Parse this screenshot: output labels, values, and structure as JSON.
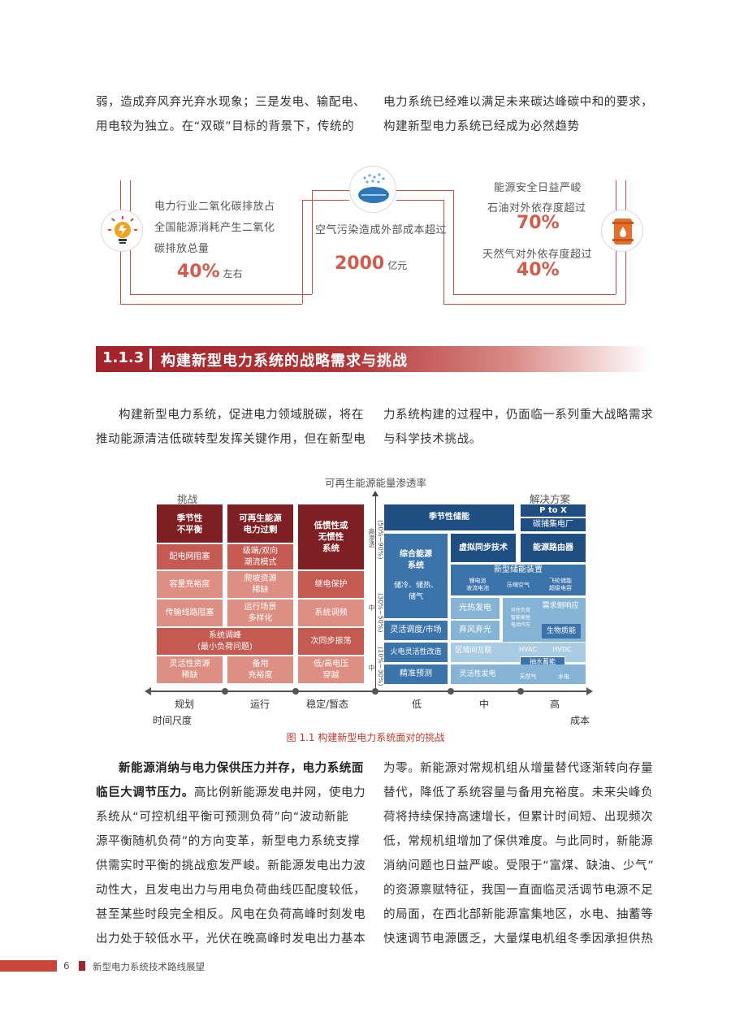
{
  "top_text": {
    "left": [
      "弱，造成弃风弃光弃水现象；三是发电、输配电、",
      "用电较为独立。在“双碳”目标的背景下，传统的"
    ],
    "right": [
      "电力系统已经难以满足未来碳达峰碳中和的要求，",
      "构建新型电力系统已经成为必然趋势"
    ]
  },
  "infographic": {
    "left": {
      "text": [
        "电力行业二氧化碳排放占",
        "全国能源消耗产生二氧化",
        "碳排放总量"
      ],
      "value": "40%",
      "unit": "左右",
      "icon": "lightbulb-icon"
    },
    "middle": {
      "text": "空气污染造成外部成本超过",
      "value": "2000",
      "unit": "亿元",
      "icon": "air-pollution-icon"
    },
    "right": {
      "header": "能源安全日益严峻",
      "oil_label": "石油对外依存度超过",
      "oil_value": "70%",
      "gas_label": "天然气对外依存度超过",
      "gas_value": "40%",
      "icon": "oil-barrel-icon"
    },
    "accent": "#cf4b3d"
  },
  "section": {
    "number": "1.1.3",
    "title": "构建新型电力系统的战略需求与挑战"
  },
  "intro": {
    "left": [
      "构建新型电力系统，促进电力领域脱碳，将在",
      "推动能源清洁低碳转型发挥关键作用，但在新型电"
    ],
    "right": [
      "力系统构建的过程中，仍面临一系列重大战略需求",
      "与科学技术挑战。"
    ]
  },
  "figure": {
    "top_title": "可再生能源能量渗透率",
    "left_title": "挑战",
    "right_title": "解决方案",
    "challenges": {
      "c1": "季节性\n不平衡",
      "c1b": "配电网阻塞",
      "c1c": "容量充裕度",
      "c1d": "传输线路阻塞",
      "c2": "可再生能源\n电力过剩",
      "c2b": "级端/双向\n潮流模式",
      "c2c": "爬坡资源\n稀缺",
      "c2d": "运行场景\n多样化",
      "c3": "低惯性或\n无惯性\n系统",
      "c3b": "继电保护",
      "c3c": "系统调频",
      "c3d": "次同步振荡",
      "wide": "系统调峰\n(最小负荷问题)",
      "b1": "灵活性资源\n稀缺",
      "b2": "备用\n充裕度",
      "b3": "低/高电压\n穿越"
    },
    "levels": {
      "high": "(50%~90%)",
      "high_word": "高渗透",
      "mid": "(30%~50%)",
      "mid_word": "中",
      "low": "(10%~30%)",
      "low_word": "中"
    },
    "solutions": {
      "s_season": "季节性储能",
      "s_ptox": "P to X",
      "s_ccs": "碳捕集电厂",
      "s_integrated": "综合能源\n系统",
      "s_integrated_sub": "储冷、储热、\n储气",
      "s_vsync": "虚拟同步技术",
      "s_router": "能源路由器",
      "s_newstorage": "新型储能装置",
      "s_ns1": "锂电池\n液流电池",
      "s_ns2": "压缩空气",
      "s_ns3": "飞轮储能\n超级电容",
      "s_solarheat": "光热发电",
      "s_dr1": "可控负荷\n智能家居\n电动汽车",
      "s_dr": "需求侧响应",
      "s_flex": "灵活调度/市场",
      "s_windsolar": "弃风弃光",
      "s_bio": "生物质能",
      "s_thermal": "火电灵活性改造",
      "s_regional": "区域间互联",
      "s_hvac": "HVAC",
      "s_hvdc": "HVDC",
      "s_pumped": "抽水蓄能",
      "s_forecast": "精准预测",
      "s_flexgen": "灵活性发电",
      "s_gas": "天然气",
      "s_hydro": "水电"
    },
    "time_axis": [
      "规划",
      "运行",
      "稳定/暂态"
    ],
    "time_label": "时间尺度",
    "cost_axis": [
      "低",
      "中",
      "高"
    ],
    "cost_label": "成本",
    "caption": "图 1.1   构建新型电力系统面对的挑战"
  },
  "body": {
    "left_bold": [
      "新能源消纳与电力保供压力并存，电力系统面",
      "临巨大调节压力。"
    ],
    "left": [
      "高比例新能源发电并网，使电力",
      "系统从“可控机组平衡可预测负荷”向“波动新能",
      "源平衡随机负荷”的方向变革，新型电力系统支撑",
      "供需实时平衡的挑战愈发严峻。新能源发电出力波",
      "动性大，且发电出力与用电负荷曲线匹配度较低，",
      "甚至某些时段完全相反。风电在负荷高峰时刻发电",
      "出力处于较低水平，光伏在晚高峰时发电出力基本"
    ],
    "right": [
      "为零。新能源对常规机组从增量替代逐渐转向存量",
      "替代，降低了系统容量与备用充裕度。未来尖峰负",
      "荷将持续保持高速增长，但累计时间短、出现频次",
      "低，常规机组增加了保供难度。与此同时，新能源",
      "消纳问题也日益严峻。受限于“富煤、缺油、少气”",
      "的资源禀赋特征，我国一直面临灵活调节电源不足",
      "的局面，在西北部新能源富集地区，水电、抽蓄等",
      "快速调节电源匮乏，大量煤电机组冬季因承担供热"
    ]
  },
  "footer": {
    "page": "6",
    "title": "新型电力系统技术路线展望"
  }
}
